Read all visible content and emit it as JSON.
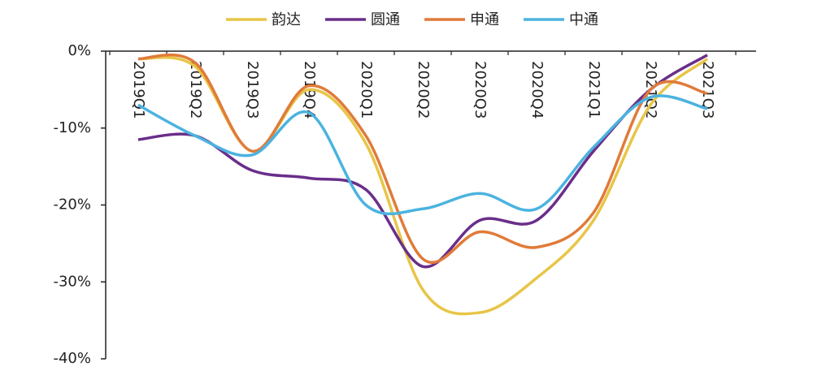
{
  "chart_data": {
    "type": "line",
    "categories": [
      "2019Q1",
      "2019Q2",
      "2019Q3",
      "2019Q4",
      "2020Q1",
      "2020Q2",
      "2020Q3",
      "2020Q4",
      "2021Q1",
      "2021Q2",
      "2021Q3"
    ],
    "series": [
      {
        "name": "韵达",
        "color": "#e8c547",
        "values": [
          -1,
          -2,
          -13,
          -5,
          -12,
          -31,
          -34,
          -29.5,
          -22,
          -7,
          -1
        ]
      },
      {
        "name": "圆通",
        "color": "#6a2e8a",
        "values": [
          -11.5,
          -11,
          -15.5,
          -16.5,
          -18,
          -28,
          -22,
          -22,
          -13,
          -5,
          -0.5
        ]
      },
      {
        "name": "申通",
        "color": "#e07b39",
        "values": [
          -1,
          -1.5,
          -13,
          -4.5,
          -11,
          -27,
          -23.5,
          -25.5,
          -21,
          -5,
          -5.5
        ]
      },
      {
        "name": "中通",
        "color": "#4bb3e0",
        "values": [
          -7,
          -11,
          -13.5,
          -8,
          -20,
          -20.5,
          -18.5,
          -20.5,
          -12.5,
          -6,
          -7.5
        ]
      }
    ],
    "ylim": [
      -40,
      0
    ],
    "yticks": [
      {
        "value": 0,
        "label": "0%"
      },
      {
        "value": -10,
        "label": "-10%"
      },
      {
        "value": -20,
        "label": "-20%"
      },
      {
        "value": -30,
        "label": "-30%"
      },
      {
        "value": -40,
        "label": "-40%"
      }
    ]
  }
}
